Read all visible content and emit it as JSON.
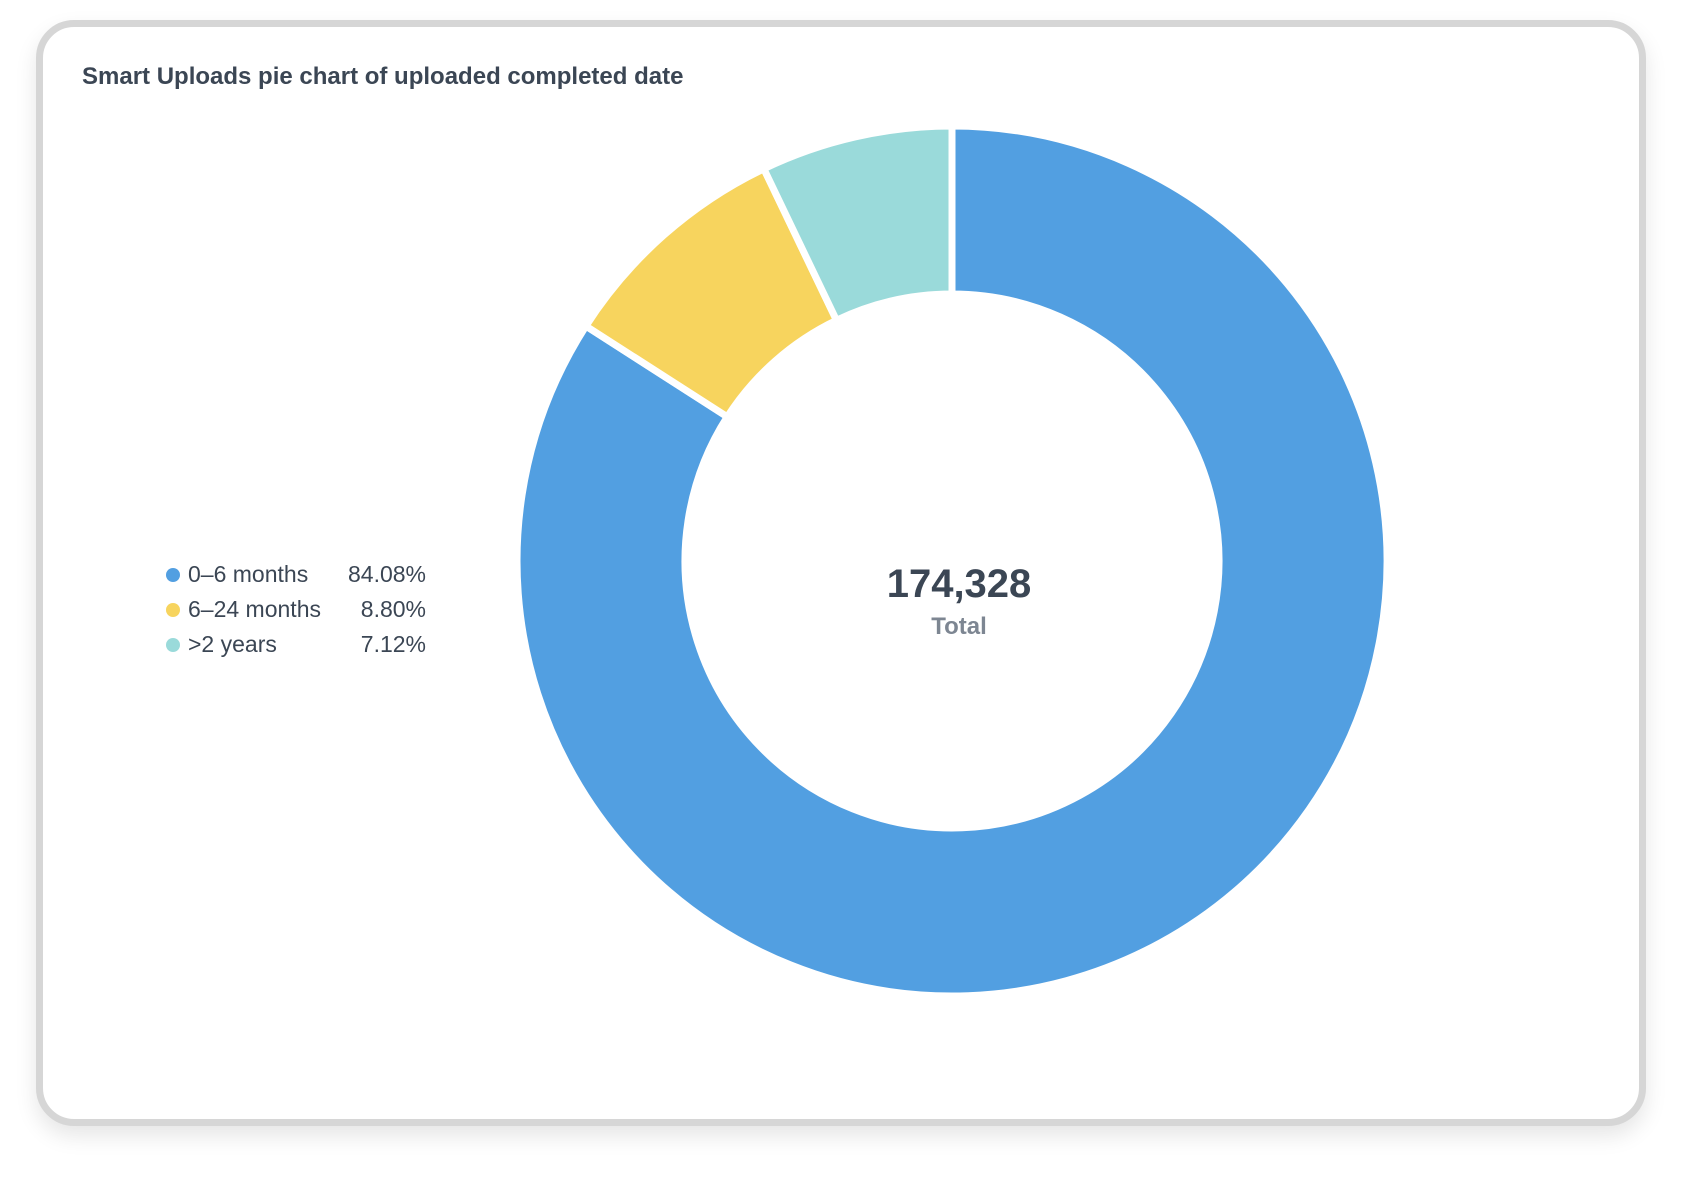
{
  "chart_data": {
    "type": "pie",
    "title": "Smart Uploads pie chart of uploaded completed date",
    "total_value": "174,328",
    "total_label": "Total",
    "legend_position": "left",
    "slices": [
      {
        "label": "0–6 months",
        "value": 84.08,
        "display": "84.08%",
        "color": "#529fe1"
      },
      {
        "label": "6–24 months",
        "value": 8.8,
        "display": "8.80%",
        "color": "#f7d45e"
      },
      {
        "label": ">2 years",
        "value": 7.12,
        "display": "7.12%",
        "color": "#9adada"
      }
    ]
  }
}
